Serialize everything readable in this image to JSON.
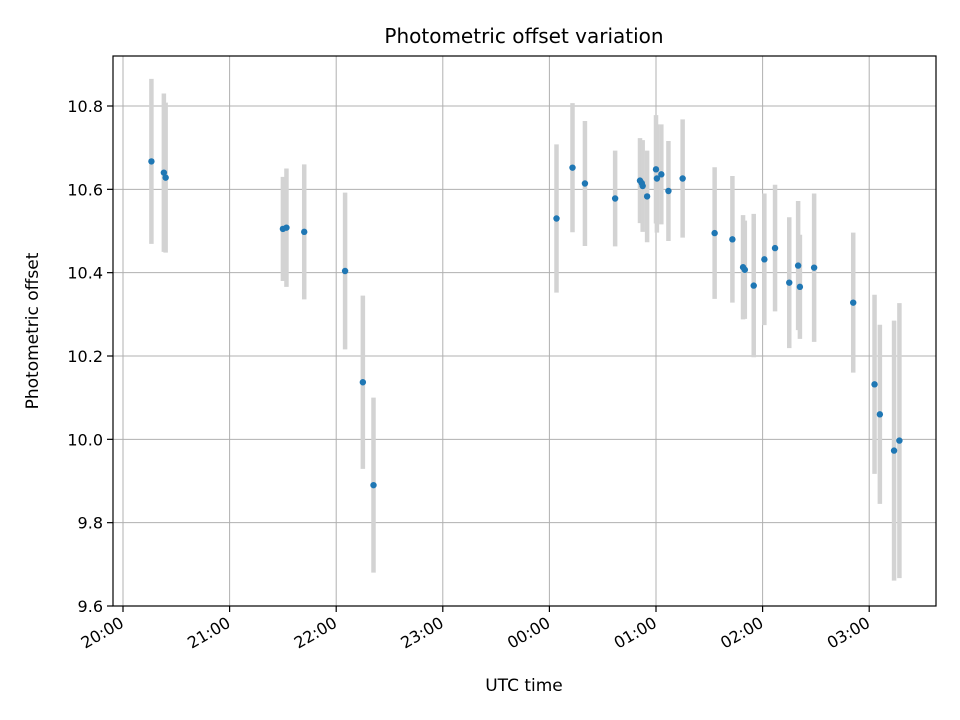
{
  "chart_data": {
    "type": "scatter",
    "title": "Photometric offset variation",
    "xlabel": "UTC time",
    "ylabel": "Photometric offset",
    "x_axis_type": "time",
    "x_tick_labels": [
      "20:00",
      "21:00",
      "22:00",
      "23:00",
      "00:00",
      "01:00",
      "02:00",
      "03:00"
    ],
    "xlim": [
      "19:56",
      "03:43"
    ],
    "ylim": [
      9.6,
      10.92
    ],
    "y_ticks": [
      9.6,
      9.8,
      10.0,
      10.2,
      10.4,
      10.6,
      10.8
    ],
    "grid": true,
    "colors": {
      "marker": "#1f77b4",
      "errorbar": "#d3d3d3",
      "grid": "#b0b0b0"
    },
    "points": [
      {
        "t": "20:16",
        "y": 10.667,
        "err": 0.198
      },
      {
        "t": "20:23",
        "y": 10.64,
        "err": 0.19
      },
      {
        "t": "20:24",
        "y": 10.628,
        "err": 0.18
      },
      {
        "t": "21:30",
        "y": 10.505,
        "err": 0.125
      },
      {
        "t": "21:32",
        "y": 10.508,
        "err": 0.142
      },
      {
        "t": "21:42",
        "y": 10.498,
        "err": 0.162
      },
      {
        "t": "22:05",
        "y": 10.404,
        "err": 0.188
      },
      {
        "t": "22:15",
        "y": 10.137,
        "err": 0.208
      },
      {
        "t": "22:21",
        "y": 9.89,
        "err": 0.21
      },
      {
        "t": "00:04",
        "y": 10.53,
        "err": 0.178
      },
      {
        "t": "00:13",
        "y": 10.652,
        "err": 0.155
      },
      {
        "t": "00:20",
        "y": 10.614,
        "err": 0.15
      },
      {
        "t": "00:37",
        "y": 10.578,
        "err": 0.115
      },
      {
        "t": "00:51",
        "y": 10.621,
        "err": 0.102
      },
      {
        "t": "00:52",
        "y": 10.615,
        "err": 0.095
      },
      {
        "t": "00:52.5",
        "y": 10.608,
        "err": 0.11
      },
      {
        "t": "00:55",
        "y": 10.583,
        "err": 0.11
      },
      {
        "t": "01:00",
        "y": 10.648,
        "err": 0.13
      },
      {
        "t": "01:00.5",
        "y": 10.626,
        "err": 0.13
      },
      {
        "t": "01:03",
        "y": 10.636,
        "err": 0.12
      },
      {
        "t": "01:07",
        "y": 10.596,
        "err": 0.12
      },
      {
        "t": "01:15",
        "y": 10.626,
        "err": 0.142
      },
      {
        "t": "01:33",
        "y": 10.495,
        "err": 0.158
      },
      {
        "t": "01:43",
        "y": 10.48,
        "err": 0.152
      },
      {
        "t": "01:49",
        "y": 10.413,
        "err": 0.125
      },
      {
        "t": "01:50",
        "y": 10.407,
        "err": 0.118
      },
      {
        "t": "01:55",
        "y": 10.369,
        "err": 0.172
      },
      {
        "t": "02:01",
        "y": 10.432,
        "err": 0.158
      },
      {
        "t": "02:07",
        "y": 10.459,
        "err": 0.152
      },
      {
        "t": "02:15",
        "y": 10.376,
        "err": 0.157
      },
      {
        "t": "02:20",
        "y": 10.417,
        "err": 0.155
      },
      {
        "t": "02:21",
        "y": 10.366,
        "err": 0.125
      },
      {
        "t": "02:29",
        "y": 10.412,
        "err": 0.178
      },
      {
        "t": "02:51",
        "y": 10.328,
        "err": 0.168
      },
      {
        "t": "03:03",
        "y": 10.132,
        "err": 0.215
      },
      {
        "t": "03:06",
        "y": 10.06,
        "err": 0.215
      },
      {
        "t": "03:14",
        "y": 9.973,
        "err": 0.312
      },
      {
        "t": "03:17",
        "y": 9.997,
        "err": 0.33
      }
    ]
  }
}
